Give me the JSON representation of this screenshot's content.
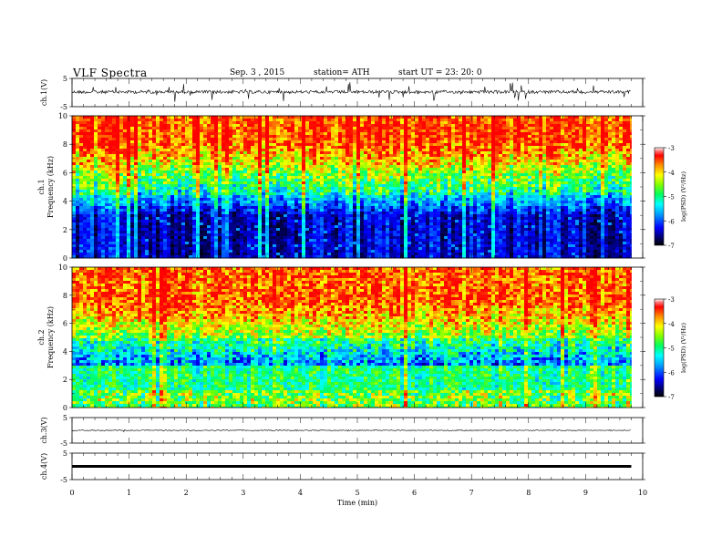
{
  "header": {
    "title": "VLF  Spectra",
    "date": "Sep. 3  , 2015",
    "station": "station= ATH",
    "start_ut": "start  UT =    23: 20: 0"
  },
  "chart_data": {
    "type": "heatmap",
    "xlabel": "Time  (min)",
    "x_ticks": [
      "0",
      "1",
      "2",
      "3",
      "4",
      "5",
      "6",
      "7",
      "8",
      "9",
      "10"
    ],
    "xlim": [
      0,
      10
    ],
    "data_end_min": 9.8,
    "panels": [
      {
        "kind": "waveform",
        "ylabel": "ch.1(V)",
        "y_ticks": [
          "5",
          "-5"
        ],
        "ylim": [
          -5,
          5
        ],
        "baseline": 0.2,
        "noise": "high"
      },
      {
        "kind": "spectrogram",
        "ylabel": "ch.1\nFrequency  (kHz)",
        "y_ticks": [
          "0",
          "2",
          "4",
          "6",
          "8",
          "10"
        ],
        "ylim": [
          0,
          10
        ],
        "colorbar": {
          "label": "log(PSD) (V²/Hz)",
          "ticks": [
            "-3",
            "-4",
            "-5",
            "-6",
            "-7"
          ],
          "range": [
            -7,
            -3
          ]
        }
      },
      {
        "kind": "spectrogram",
        "ylabel": "ch.2\nFrequency  (kHz)",
        "y_ticks": [
          "0",
          "2",
          "4",
          "6",
          "8",
          "10"
        ],
        "ylim": [
          0,
          10
        ],
        "colorbar": {
          "label": "log(PSD) (V²/Hz)",
          "ticks": [
            "-3",
            "-4",
            "-5",
            "-6",
            "-7"
          ],
          "range": [
            -7,
            -3
          ]
        }
      },
      {
        "kind": "waveform",
        "ylabel": "ch.3(V)",
        "y_ticks": [
          "5",
          "-5"
        ],
        "ylim": [
          -5,
          5
        ],
        "baseline": 0.0,
        "noise": "low"
      },
      {
        "kind": "waveform",
        "ylabel": "ch.4(V)",
        "y_ticks": [
          "5",
          "-5"
        ],
        "ylim": [
          -5,
          5
        ],
        "baseline": 0.0,
        "noise": "flat"
      }
    ]
  }
}
